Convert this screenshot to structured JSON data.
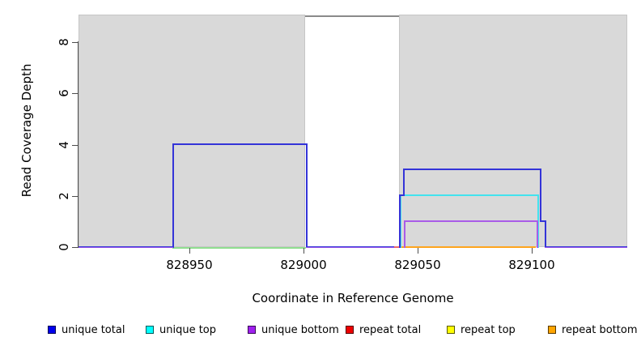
{
  "axes": {
    "x": {
      "label": "Coordinate in Reference Genome",
      "ticks": [
        828950,
        829000,
        829050,
        829100
      ]
    },
    "y": {
      "label": "Read Coverage Depth",
      "ticks": [
        0,
        2,
        4,
        6,
        8
      ]
    }
  },
  "legend": {
    "items": [
      {
        "label": "unique total",
        "color": "#0000EE"
      },
      {
        "label": "unique top",
        "color": "#00FFFF"
      },
      {
        "label": "unique bottom",
        "color": "#A020F0"
      },
      {
        "label": "repeat total",
        "color": "#EE0000"
      },
      {
        "label": "repeat top",
        "color": "#FFFF00"
      },
      {
        "label": "repeat bottom",
        "color": "#FFA500"
      }
    ]
  },
  "colors": {
    "shaded_region": "#d9d9d9",
    "masked_depth_line": "#8a8a8a",
    "zero_line_overlap_blue_purple": [
      "#3434d8",
      "#9b59e8"
    ],
    "zero_line_overlap_green": "#90de90"
  },
  "chart_data": {
    "type": "line",
    "subtype": "step-coverage",
    "title": "",
    "xlabel": "Coordinate in Reference Genome",
    "ylabel": "Read Coverage Depth",
    "xlim": [
      828901,
      829142
    ],
    "ylim": [
      0,
      9
    ],
    "x_ticks": [
      828950,
      829000,
      829050,
      829100
    ],
    "y_ticks": [
      0,
      2,
      4,
      6,
      8
    ],
    "grid": false,
    "legend_position": "bottom",
    "shaded_regions": [
      [
        828901,
        829001
      ],
      [
        829042,
        829142
      ]
    ],
    "masked_region": {
      "interval": [
        829001,
        829042
      ],
      "depth_line": 9,
      "color": "#8a8a8a"
    },
    "series": [
      {
        "name": "unique total",
        "color": "#0000EE",
        "steps": [
          [
            828901,
            0
          ],
          [
            828943,
            0
          ],
          [
            828943,
            4
          ],
          [
            829001,
            4
          ],
          [
            829001,
            0
          ],
          [
            829042,
            0
          ],
          [
            829042,
            2
          ],
          [
            829044,
            2
          ],
          [
            829044,
            3
          ],
          [
            829104,
            3
          ],
          [
            829104,
            1
          ],
          [
            829106,
            1
          ],
          [
            829106,
            0
          ],
          [
            829142,
            0
          ]
        ]
      },
      {
        "name": "unique top",
        "color": "#00FFFF",
        "steps": [
          [
            829042,
            0
          ],
          [
            829042,
            2
          ],
          [
            829103,
            2
          ],
          [
            829103,
            0
          ]
        ]
      },
      {
        "name": "unique bottom",
        "color": "#A020F0",
        "steps": [
          [
            829044,
            0
          ],
          [
            829044,
            1
          ],
          [
            829102,
            1
          ],
          [
            829102,
            0
          ]
        ]
      },
      {
        "name": "repeat total",
        "color": "#EE0000",
        "steps": [
          [
            829036,
            0
          ],
          [
            829043,
            0
          ]
        ]
      },
      {
        "name": "repeat top",
        "color": "#FFFF00",
        "steps": [
          [
            828901,
            0
          ],
          [
            829142,
            0
          ]
        ]
      },
      {
        "name": "repeat bottom",
        "color": "#FFA500",
        "steps": [
          [
            829043,
            0
          ],
          [
            829101,
            0
          ]
        ]
      }
    ]
  }
}
